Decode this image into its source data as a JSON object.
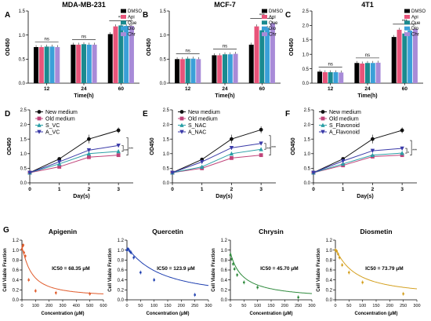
{
  "colors": {
    "DMSO": "#000000",
    "Api": "#e8547a",
    "Que": "#1a8a8f",
    "Dio": "#3aa0d8",
    "Chr": "#a88bd8",
    "new_medium": "#111111",
    "old_medium": "#c0447a",
    "s_line": "#2a9fa6",
    "a_line": "#3a3aa8",
    "apigenin": "#e05a2a",
    "quercetin": "#1e3fb0",
    "chrysin": "#2e8a3c",
    "diosmetin": "#d4a020"
  },
  "chart_data": [
    {
      "id": "A",
      "panel_label": "A",
      "type": "bar",
      "title": "MDA-MB-231",
      "xlabel": "Time(h)",
      "ylabel": "OD450",
      "ylim": [
        0,
        1.5
      ],
      "yticks": [
        "0.0",
        "0.5",
        "1.0",
        "1.5"
      ],
      "categories": [
        "12",
        "24",
        "60"
      ],
      "series": [
        {
          "name": "DMSO",
          "color": "#000000",
          "values": [
            0.75,
            0.8,
            1.02
          ]
        },
        {
          "name": "Api",
          "color": "#e8547a",
          "values": [
            0.75,
            0.8,
            1.18
          ]
        },
        {
          "name": "Que",
          "color": "#1a8a8f",
          "values": [
            0.76,
            0.81,
            1.2
          ]
        },
        {
          "name": "Dio",
          "color": "#3aa0d8",
          "values": [
            0.76,
            0.8,
            1.19
          ]
        },
        {
          "name": "Chr",
          "color": "#a88bd8",
          "values": [
            0.75,
            0.8,
            1.19
          ]
        }
      ],
      "annotations": [
        "ns",
        "ns",
        "***"
      ]
    },
    {
      "id": "B",
      "panel_label": "B",
      "type": "bar",
      "title": "MCF-7",
      "xlabel": "Time(h)",
      "ylabel": "OD450",
      "ylim": [
        0,
        1.5
      ],
      "yticks": [
        "0.0",
        "0.5",
        "1.0",
        "1.5"
      ],
      "categories": [
        "12",
        "24",
        "60"
      ],
      "series": [
        {
          "name": "DMSO",
          "color": "#000000",
          "values": [
            0.5,
            0.58,
            0.8
          ]
        },
        {
          "name": "Api",
          "color": "#e8547a",
          "values": [
            0.5,
            0.58,
            1.18
          ]
        },
        {
          "name": "Que",
          "color": "#1a8a8f",
          "values": [
            0.51,
            0.6,
            1.1
          ]
        },
        {
          "name": "Dio",
          "color": "#3aa0d8",
          "values": [
            0.51,
            0.6,
            1.15
          ]
        },
        {
          "name": "Chr",
          "color": "#a88bd8",
          "values": [
            0.5,
            0.61,
            1.25
          ]
        }
      ],
      "annotations": [
        "ns",
        "ns",
        "***"
      ]
    },
    {
      "id": "C",
      "panel_label": "C",
      "type": "bar",
      "title": "4T1",
      "xlabel": "Time(h)",
      "ylabel": "OD450",
      "ylim": [
        0,
        2.5
      ],
      "yticks": [
        "0.0",
        "0.5",
        "1.0",
        "1.5",
        "2.0",
        "2.5"
      ],
      "categories": [
        "12",
        "24",
        "60"
      ],
      "series": [
        {
          "name": "DMSO",
          "color": "#000000",
          "values": [
            0.4,
            0.7,
            1.6
          ]
        },
        {
          "name": "Api",
          "color": "#e8547a",
          "values": [
            0.38,
            0.68,
            1.85
          ]
        },
        {
          "name": "Que",
          "color": "#1a8a8f",
          "values": [
            0.38,
            0.7,
            1.72
          ]
        },
        {
          "name": "Dio",
          "color": "#3aa0d8",
          "values": [
            0.38,
            0.7,
            1.82
          ]
        },
        {
          "name": "Chr",
          "color": "#a88bd8",
          "values": [
            0.37,
            0.71,
            1.88
          ]
        }
      ],
      "annotations": [
        "ns",
        "ns",
        "***"
      ]
    },
    {
      "id": "D",
      "panel_label": "D",
      "type": "line",
      "xlabel": "Day(s)",
      "ylabel": "OD450",
      "xlim": [
        0,
        3.5
      ],
      "ylim": [
        0,
        2.5
      ],
      "xticks": [
        "0",
        "1",
        "2",
        "3"
      ],
      "yticks": [
        "0.0",
        "0.5",
        "1.0",
        "1.5",
        "2.0",
        "2.5"
      ],
      "x": [
        0,
        1,
        2,
        3
      ],
      "series": [
        {
          "name": "New medium",
          "marker": "circle",
          "color": "#111111",
          "values": [
            0.35,
            0.82,
            1.5,
            1.8
          ],
          "errors": [
            0.02,
            0.05,
            0.15,
            0.1
          ]
        },
        {
          "name": "Old medium",
          "marker": "square",
          "color": "#c0447a",
          "values": [
            0.35,
            0.55,
            0.88,
            0.95
          ],
          "errors": [
            0.02,
            0.03,
            0.05,
            0.05
          ]
        },
        {
          "name": "S_VC",
          "marker": "triangle-up",
          "color": "#2a9fa6",
          "values": [
            0.35,
            0.65,
            1.0,
            1.08
          ],
          "errors": [
            0.02,
            0.03,
            0.05,
            0.05
          ]
        },
        {
          "name": "A_VC",
          "marker": "triangle-down",
          "color": "#3a3aa8",
          "values": [
            0.35,
            0.72,
            1.12,
            1.28
          ],
          "errors": [
            0.02,
            0.03,
            0.06,
            0.06
          ]
        }
      ],
      "annotations": [
        "***",
        "***"
      ]
    },
    {
      "id": "E",
      "panel_label": "E",
      "type": "line",
      "xlabel": "Day(s)",
      "ylabel": "OD450",
      "xlim": [
        0,
        3.5
      ],
      "ylim": [
        0,
        2.5
      ],
      "xticks": [
        "0",
        "1",
        "2",
        "3"
      ],
      "yticks": [
        "0.0",
        "0.5",
        "1.0",
        "1.5",
        "2.0",
        "2.5"
      ],
      "x": [
        0,
        1,
        2,
        3
      ],
      "series": [
        {
          "name": "New medium",
          "marker": "circle",
          "color": "#111111",
          "values": [
            0.35,
            0.8,
            1.5,
            1.82
          ],
          "errors": [
            0.02,
            0.05,
            0.15,
            0.12
          ]
        },
        {
          "name": "Old medium",
          "marker": "square",
          "color": "#c0447a",
          "values": [
            0.35,
            0.5,
            0.85,
            0.95
          ],
          "errors": [
            0.02,
            0.03,
            0.05,
            0.05
          ]
        },
        {
          "name": "S_NAC",
          "marker": "triangle-up",
          "color": "#2a9fa6",
          "values": [
            0.35,
            0.55,
            1.0,
            1.15
          ],
          "errors": [
            0.02,
            0.03,
            0.05,
            0.05
          ]
        },
        {
          "name": "A_NAC",
          "marker": "triangle-down",
          "color": "#3a3aa8",
          "values": [
            0.35,
            0.72,
            1.2,
            1.35
          ],
          "errors": [
            0.02,
            0.03,
            0.06,
            0.06
          ]
        }
      ],
      "annotations": [
        "***",
        "***"
      ]
    },
    {
      "id": "F",
      "panel_label": "F",
      "type": "line",
      "xlabel": "Day(s)",
      "ylabel": "OD450",
      "xlim": [
        0,
        3.5
      ],
      "ylim": [
        0,
        2.5
      ],
      "xticks": [
        "0",
        "1",
        "2",
        "3"
      ],
      "yticks": [
        "0.0",
        "0.5",
        "1.0",
        "1.5",
        "2.0",
        "2.5"
      ],
      "x": [
        0,
        1,
        2,
        3
      ],
      "series": [
        {
          "name": "New medium",
          "marker": "circle",
          "color": "#111111",
          "values": [
            0.35,
            0.82,
            1.5,
            1.8
          ],
          "errors": [
            0.02,
            0.05,
            0.15,
            0.1
          ]
        },
        {
          "name": "Old medium",
          "marker": "square",
          "color": "#c0447a",
          "values": [
            0.35,
            0.6,
            0.9,
            0.95
          ],
          "errors": [
            0.02,
            0.03,
            0.05,
            0.05
          ]
        },
        {
          "name": "S_Flavonoid",
          "marker": "triangle-up",
          "color": "#2a9fa6",
          "values": [
            0.35,
            0.65,
            0.95,
            1.02
          ],
          "errors": [
            0.02,
            0.03,
            0.05,
            0.05
          ]
        },
        {
          "name": "A_Flavonoid",
          "marker": "triangle-down",
          "color": "#3a3aa8",
          "values": [
            0.35,
            0.75,
            1.1,
            1.18
          ],
          "errors": [
            0.02,
            0.03,
            0.06,
            0.06
          ]
        }
      ],
      "annotations": [
        "*",
        "***"
      ]
    },
    {
      "id": "G1",
      "panel_label": "G",
      "type": "scatter",
      "title": "Apigenin",
      "xlabel": "Concentration (μM)",
      "ylabel": "Cell Viable Fraction",
      "xlim": [
        0,
        600
      ],
      "ylim": [
        0,
        1.2
      ],
      "xticks": [
        "0",
        "100",
        "200",
        "300",
        "400",
        "500",
        "600"
      ],
      "yticks": [
        "0.0",
        "0.2",
        "0.4",
        "0.6",
        "0.8",
        "1.0",
        "1.2"
      ],
      "color": "#e05a2a",
      "points": [
        [
          0,
          1.02
        ],
        [
          5,
          1.08
        ],
        [
          10,
          1.1
        ],
        [
          15,
          0.95
        ],
        [
          25,
          0.88
        ],
        [
          50,
          0.4
        ],
        [
          100,
          0.18
        ],
        [
          250,
          0.14
        ],
        [
          500,
          0.12
        ]
      ],
      "fit": {
        "model": "hill",
        "ic50": 68.35,
        "top": 1.05,
        "bottom": 0.05,
        "n": 1.2
      },
      "ic50_label": "IC50 = 68.35 μM"
    },
    {
      "id": "G2",
      "panel_label": "",
      "type": "scatter",
      "title": "Quercetin",
      "xlabel": "Concentration (μM)",
      "ylabel": "Cell Viable Fraction",
      "xlim": [
        0,
        300
      ],
      "ylim": [
        0,
        1.2
      ],
      "xticks": [
        "0",
        "50",
        "100",
        "150",
        "200",
        "250",
        "300"
      ],
      "yticks": [
        "0.0",
        "0.2",
        "0.4",
        "0.6",
        "0.8",
        "1.0",
        "1.2"
      ],
      "color": "#1e3fb0",
      "points": [
        [
          0,
          1.0
        ],
        [
          5,
          1.02
        ],
        [
          10,
          0.98
        ],
        [
          15,
          0.95
        ],
        [
          25,
          0.85
        ],
        [
          50,
          0.55
        ],
        [
          100,
          0.4
        ],
        [
          250,
          0.1
        ]
      ],
      "fit": {
        "model": "hill",
        "ic50": 123.9,
        "top": 1.05,
        "bottom": 0.0,
        "n": 1.1
      },
      "ic50_label": "IC50 = 123.9 μM"
    },
    {
      "id": "G3",
      "panel_label": "",
      "type": "scatter",
      "title": "Chrysin",
      "xlabel": "Concentration (μM)",
      "ylabel": "Cell Viable Fraction",
      "xlim": [
        0,
        300
      ],
      "ylim": [
        0,
        1.2
      ],
      "xticks": [
        "0",
        "50",
        "100",
        "150",
        "200",
        "250",
        "300"
      ],
      "yticks": [
        "0.0",
        "0.2",
        "0.4",
        "0.6",
        "0.8",
        "1.0",
        "1.2"
      ],
      "color": "#2e8a3c",
      "points": [
        [
          0,
          0.9
        ],
        [
          5,
          0.82
        ],
        [
          10,
          0.72
        ],
        [
          15,
          0.62
        ],
        [
          25,
          0.5
        ],
        [
          50,
          0.35
        ],
        [
          100,
          0.25
        ],
        [
          250,
          0.05
        ]
      ],
      "fit": {
        "model": "hill",
        "ic50": 45.7,
        "top": 0.95,
        "bottom": 0.0,
        "n": 1.0
      },
      "ic50_label": "IC50 = 45.70 μM"
    },
    {
      "id": "G4",
      "panel_label": "",
      "type": "scatter",
      "title": "Diosmetin",
      "xlabel": "Concentration (μM)",
      "ylabel": "Cell Viable Fraction",
      "xlim": [
        0,
        300
      ],
      "ylim": [
        0,
        1.2
      ],
      "xticks": [
        "0",
        "50",
        "100",
        "150",
        "200",
        "250",
        "300"
      ],
      "yticks": [
        "0.0",
        "0.2",
        "0.4",
        "0.6",
        "0.8",
        "1.0",
        "1.2"
      ],
      "color": "#d4a020",
      "points": [
        [
          0,
          1.0
        ],
        [
          5,
          0.98
        ],
        [
          10,
          0.92
        ],
        [
          15,
          0.85
        ],
        [
          25,
          0.7
        ],
        [
          50,
          0.55
        ],
        [
          100,
          0.35
        ],
        [
          250,
          0.12
        ]
      ],
      "fit": {
        "model": "hill",
        "ic50": 73.79,
        "top": 1.02,
        "bottom": 0.05,
        "n": 1.1
      },
      "ic50_label": "IC50 = 73.79 μM"
    }
  ]
}
